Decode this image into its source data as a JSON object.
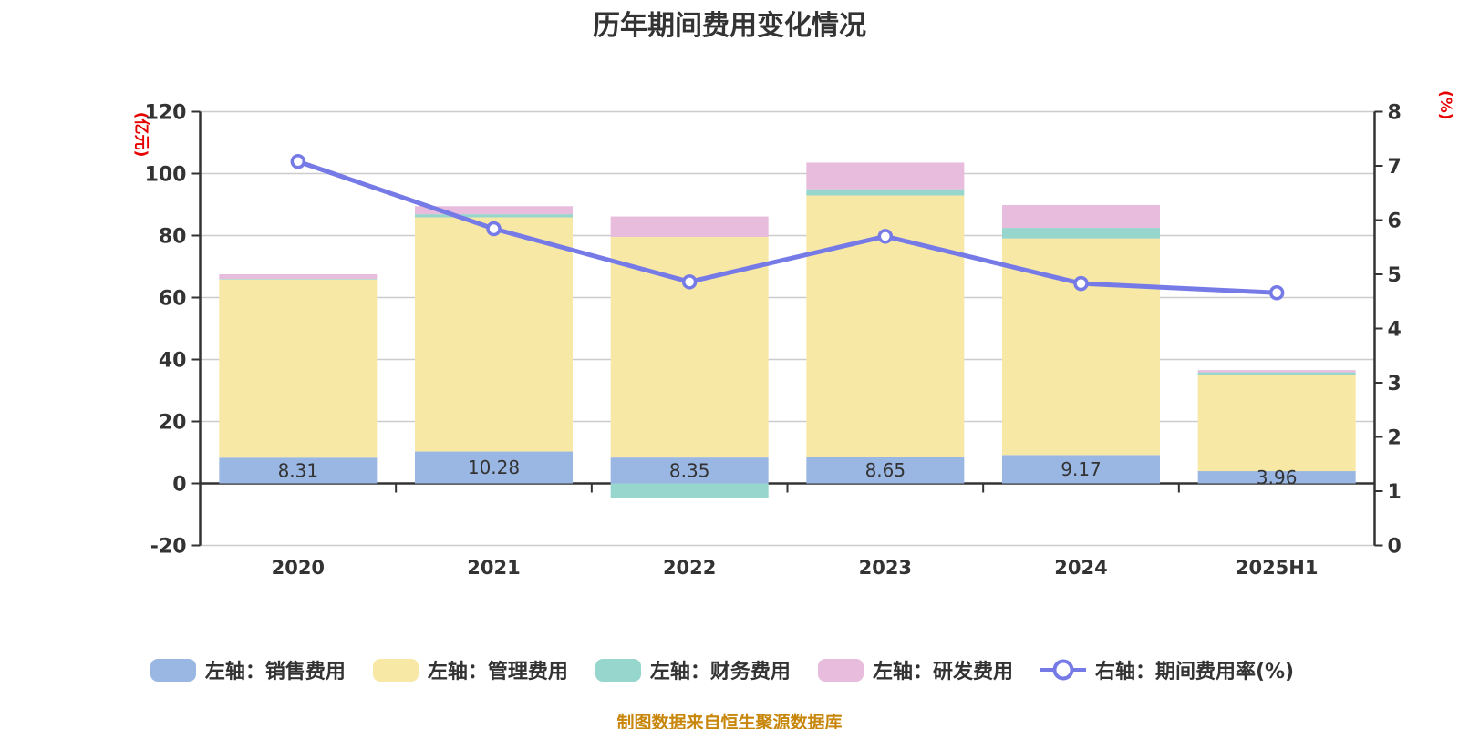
{
  "title": "历年期间费用变化情况",
  "footer": "制图数据来自恒生聚源数据库",
  "footer_color": "#c8860b",
  "left_axis_name": "(亿元)",
  "right_axis_name": "(%)",
  "axis_name_color": "#e60000",
  "text_color": "#333333",
  "grid_color": "#cccccc",
  "chart_data": {
    "type": "bar",
    "stacked": true,
    "grid": true,
    "legend_position": "bottom",
    "categories": [
      "2020",
      "2021",
      "2022",
      "2023",
      "2024",
      "2025H1"
    ],
    "series": [
      {
        "name": "左轴：销售费用",
        "axis": "left",
        "type": "bar",
        "color": "#9ab7e4",
        "values": [
          8.31,
          10.28,
          8.35,
          8.65,
          9.17,
          3.96
        ],
        "labels_visible": true
      },
      {
        "name": "左轴：管理费用",
        "axis": "left",
        "type": "bar",
        "color": "#f8e8a6",
        "values": [
          57.5,
          75.6,
          71.2,
          84.3,
          69.9,
          31.0
        ]
      },
      {
        "name": "左轴：财务费用",
        "axis": "left",
        "type": "bar",
        "color": "#96d6cd",
        "values": [
          0.2,
          1.0,
          -4.7,
          2.0,
          3.4,
          0.9
        ]
      },
      {
        "name": "左轴：研发费用",
        "axis": "left",
        "type": "bar",
        "color": "#e8bcdc",
        "values": [
          1.5,
          2.6,
          6.6,
          8.6,
          7.4,
          0.7
        ]
      },
      {
        "name": "右轴：期间费用率(%)",
        "axis": "right",
        "type": "line",
        "color": "#767ae6",
        "values": [
          7.08,
          5.84,
          4.86,
          5.7,
          4.83,
          4.66
        ]
      }
    ],
    "left_axis": {
      "min": -20,
      "max": 120,
      "step": 20
    },
    "right_axis": {
      "min": 0,
      "max": 8,
      "step": 1
    }
  }
}
